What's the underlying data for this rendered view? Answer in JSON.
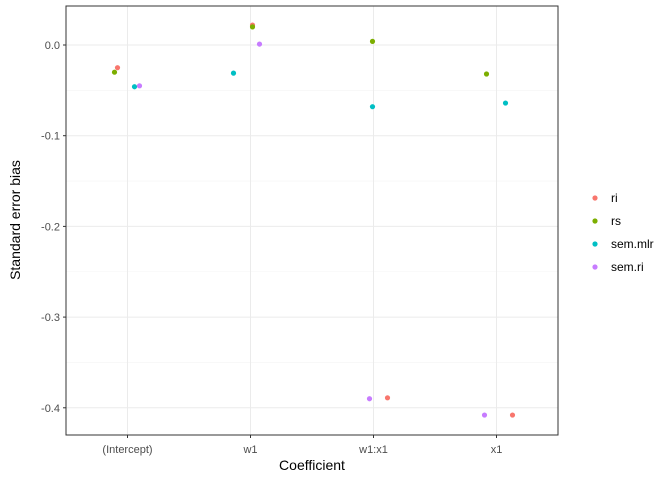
{
  "chart_data": {
    "type": "scatter",
    "xlabel": "Coefficient",
    "ylabel": "Standard error bias",
    "categories": [
      "(Intercept)",
      "w1",
      "w1:x1",
      "x1"
    ],
    "ylim": [
      -0.43,
      0.043
    ],
    "yticks": [
      0.0,
      -0.1,
      -0.2,
      -0.3,
      -0.4
    ],
    "y_tick_labels": [
      "0.0",
      "-0.1",
      "-0.2",
      "-0.3",
      "-0.4"
    ],
    "grid": true,
    "legend_position": "right",
    "series": [
      {
        "name": "ri",
        "color": "#F8766D",
        "points": [
          {
            "category": "(Intercept)",
            "y": -0.025
          },
          {
            "category": "w1",
            "y": 0.022
          },
          {
            "category": "w1:x1",
            "y": -0.389
          },
          {
            "category": "x1",
            "y": -0.408
          }
        ]
      },
      {
        "name": "rs",
        "color": "#7CAE00",
        "points": [
          {
            "category": "(Intercept)",
            "y": -0.03
          },
          {
            "category": "w1",
            "y": 0.02
          },
          {
            "category": "w1:x1",
            "y": 0.004
          },
          {
            "category": "x1",
            "y": -0.032
          }
        ]
      },
      {
        "name": "sem.mlr",
        "color": "#00BFC4",
        "points": [
          {
            "category": "(Intercept)",
            "y": -0.046
          },
          {
            "category": "w1",
            "y": -0.031
          },
          {
            "category": "w1:x1",
            "y": -0.068
          },
          {
            "category": "x1",
            "y": -0.064
          }
        ]
      },
      {
        "name": "sem.ri",
        "color": "#C77CFF",
        "points": [
          {
            "category": "(Intercept)",
            "y": -0.045
          },
          {
            "category": "w1",
            "y": 0.001
          },
          {
            "category": "w1:x1",
            "y": -0.39
          },
          {
            "category": "x1",
            "y": -0.408
          }
        ]
      }
    ]
  }
}
